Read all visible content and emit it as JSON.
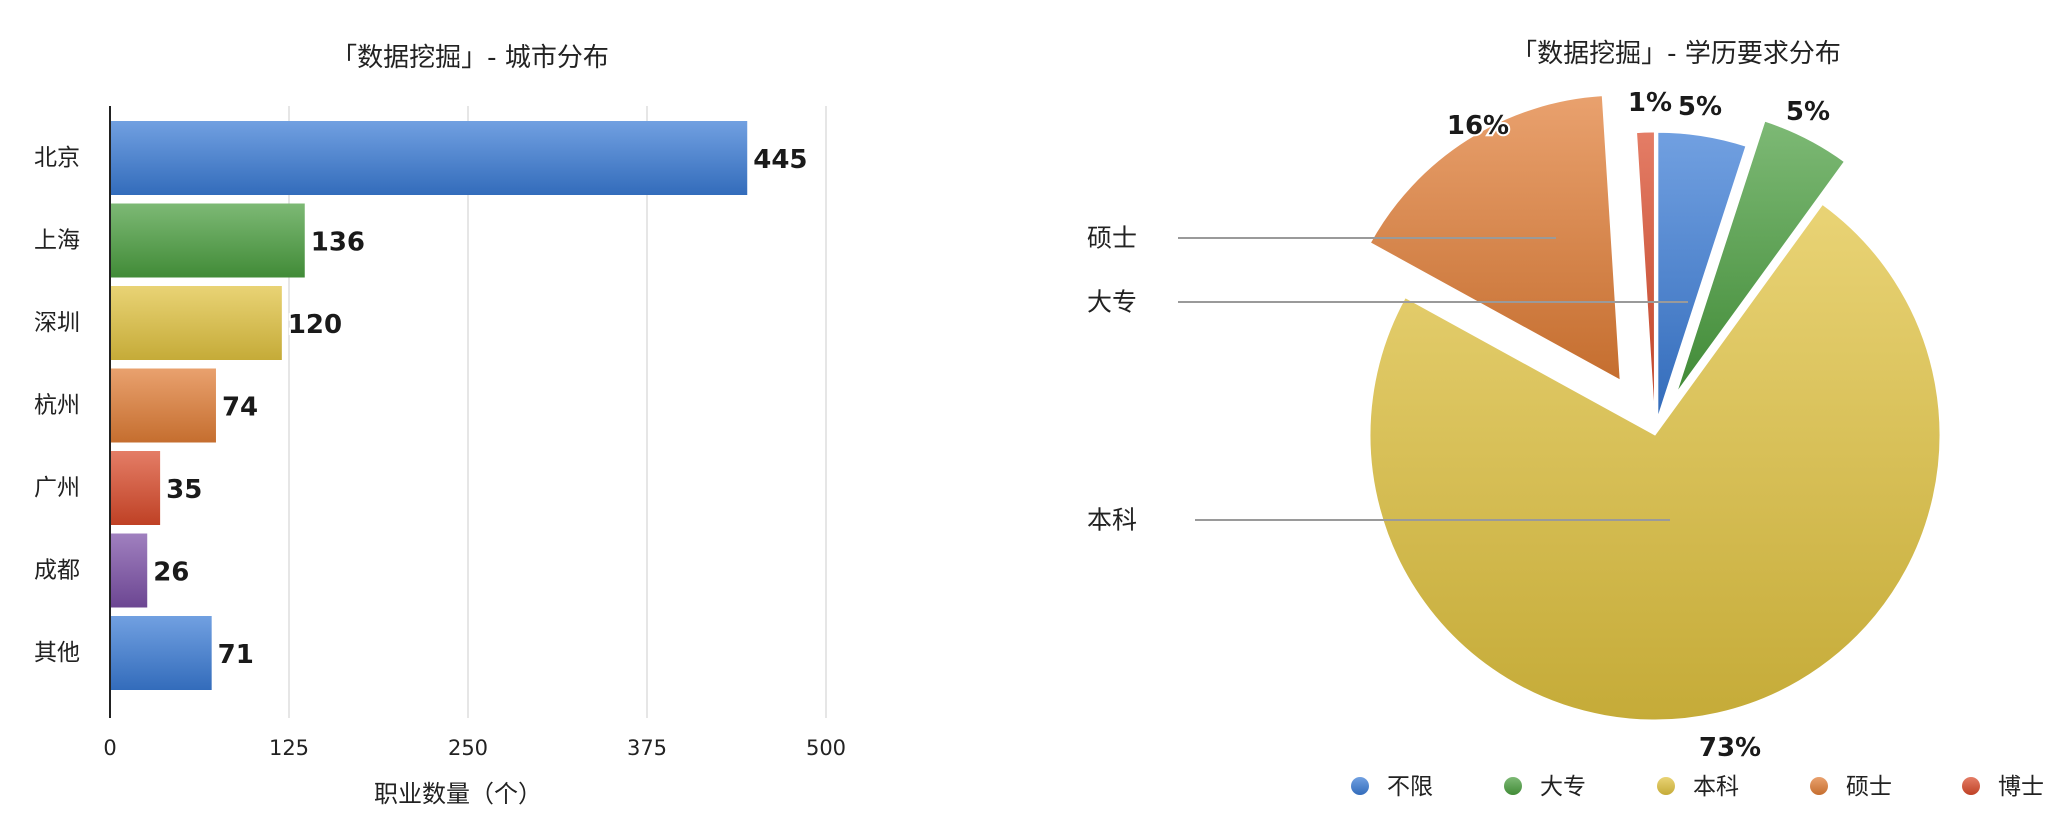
{
  "chart_data": [
    {
      "type": "bar",
      "orientation": "horizontal",
      "title": "「数据挖掘」- 城市分布",
      "xlabel": "职业数量（个）",
      "ylabel": "",
      "categories": [
        "北京",
        "上海",
        "深圳",
        "杭州",
        "广州",
        "成都",
        "其他"
      ],
      "values": [
        445,
        136,
        120,
        74,
        35,
        26,
        71
      ],
      "value_labels": [
        "445",
        "136",
        "120",
        "74",
        "35",
        "26",
        "71"
      ],
      "xlim": [
        0,
        500
      ],
      "xticks": [
        0,
        125,
        250,
        375,
        500
      ],
      "xtick_labels": [
        "0",
        "125",
        "250",
        "375",
        "500"
      ],
      "grid": "vertical",
      "bar_colors": [
        "#3a7bd5",
        "#4a9e3f",
        "#e0c240",
        "#e07d35",
        "#d94a2a",
        "#7b4fa6",
        "#3a7bd5"
      ]
    },
    {
      "type": "pie",
      "style": "exploded",
      "title": "「数据挖掘」- 学历要求分布",
      "categories": [
        "不限",
        "大专",
        "本科",
        "硕士",
        "博士"
      ],
      "values": [
        5,
        5,
        73,
        16,
        1
      ],
      "value_labels": [
        "5%",
        "5%",
        "73%",
        "16%",
        "1%"
      ],
      "callouts": [
        "本科",
        "大专",
        "硕士"
      ],
      "legend_position": "bottom",
      "colors": [
        "#3a7bd5",
        "#4a9e3f",
        "#e0c240",
        "#e07d35",
        "#d94a2a"
      ]
    }
  ]
}
